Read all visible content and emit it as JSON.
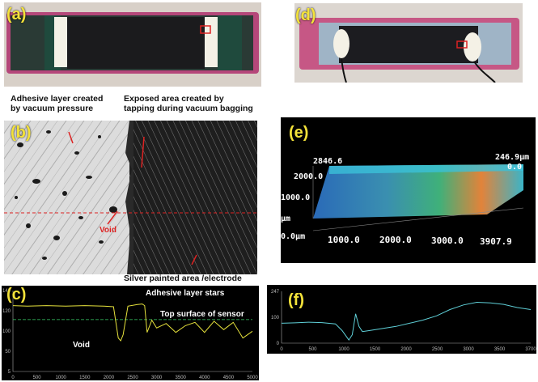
{
  "panels": {
    "a": {
      "label": "(a)"
    },
    "b": {
      "label": "(b)",
      "annotations": {
        "adhesive_layer": "Adhesive layer created\nby vacuum pressure",
        "exposed_area": "Exposed area created by\ntapping during vacuum bagging",
        "void": "Void",
        "silver_area": "Silver painted area /electrode"
      }
    },
    "c": {
      "label": "(c)",
      "annotations": {
        "adhesive_starts": "Adhesive layer stars",
        "top_surface": "Top surface of sensor",
        "void": "Void"
      }
    },
    "d": {
      "label": "(d)"
    },
    "e": {
      "label": "(e)",
      "z_top_left": "2846.6",
      "z_top_right": "246.9µm",
      "z_zero_right": "0.0",
      "z_labels": [
        "2000.0",
        "1000.0",
        "µm",
        "0.0µm"
      ],
      "x_labels": [
        "1000.0",
        "2000.0",
        "3000.0",
        "3907.9"
      ]
    },
    "f": {
      "label": "(f)"
    }
  },
  "colors": {
    "label_yellow": "#f3e23a",
    "trace_yellow": "#e6e23c",
    "trace_cyan": "#5fd0d8",
    "specimen_pink": "#c24f7e",
    "electrode_green": "#1f4a3d"
  },
  "chart_data": [
    {
      "panel": "c",
      "type": "line",
      "xlim": [
        0,
        5000
      ],
      "ylim": [
        0,
        145
      ],
      "y_ticks": [
        "145",
        "120",
        "100",
        "50",
        "5"
      ],
      "x_ticks": [
        "0",
        "500",
        "1000",
        "1500",
        "2000",
        "2500",
        "3000",
        "3500",
        "4000",
        "4500",
        "5000"
      ],
      "x": [
        0,
        300,
        700,
        1100,
        1500,
        1900,
        2100,
        2200,
        2250,
        2300,
        2400,
        2600,
        2700,
        2750,
        2800,
        2900,
        3000,
        3200,
        3400,
        3600,
        3800,
        4000,
        4200,
        4400,
        4600,
        4800,
        5000
      ],
      "y": [
        118,
        117,
        118,
        117,
        118,
        117,
        116,
        60,
        55,
        66,
        117,
        120,
        121,
        118,
        70,
        92,
        78,
        86,
        70,
        82,
        88,
        70,
        90,
        75,
        88,
        60,
        72
      ],
      "reference_line_y": 93
    },
    {
      "panel": "f",
      "type": "line",
      "xlim": [
        0,
        3700
      ],
      "ylim": [
        0,
        247
      ],
      "y_ticks": [
        "247",
        "100",
        "0"
      ],
      "x_ticks": [
        "0",
        "500",
        "1000",
        "1500",
        "2000",
        "2500",
        "3000",
        "3500",
        "3700"
      ],
      "x": [
        0,
        200,
        400,
        600,
        800,
        900,
        1000,
        1050,
        1100,
        1150,
        1200,
        1300,
        1500,
        1700,
        1900,
        2100,
        2300,
        2500,
        2700,
        2900,
        3100,
        3300,
        3500,
        3700
      ],
      "y": [
        95,
        97,
        100,
        98,
        92,
        60,
        15,
        40,
        140,
        80,
        55,
        60,
        70,
        80,
        95,
        110,
        130,
        160,
        182,
        195,
        192,
        185,
        170,
        160
      ]
    }
  ]
}
